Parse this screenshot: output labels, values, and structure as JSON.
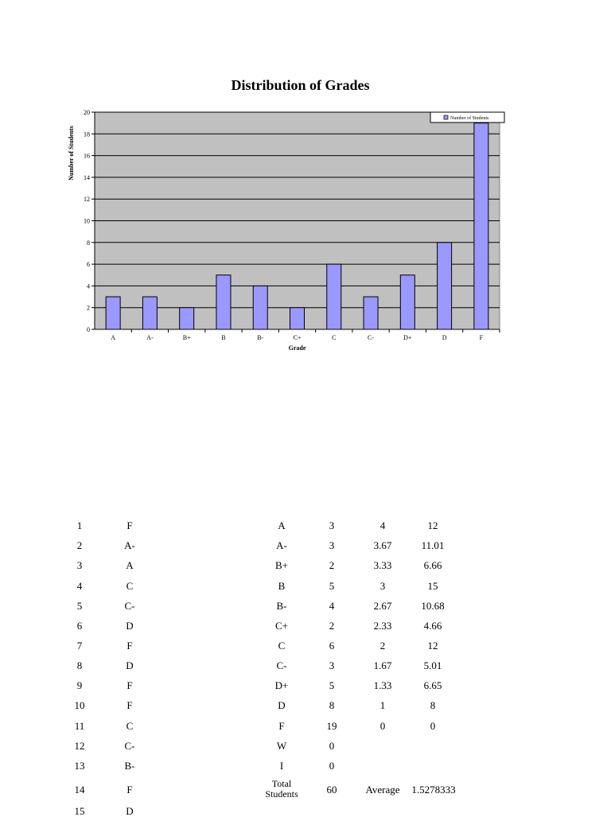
{
  "chart_data": {
    "type": "bar",
    "title": "Distribution of Grades",
    "xlabel": "Grade",
    "ylabel": "Number of Students",
    "categories": [
      "A",
      "A-",
      "B+",
      "B",
      "B-",
      "C+",
      "C",
      "C-",
      "D+",
      "D",
      "F"
    ],
    "series": [
      {
        "name": "Number of Students",
        "values": [
          3,
          3,
          2,
          5,
          4,
          2,
          6,
          3,
          5,
          8,
          19
        ]
      }
    ],
    "ylim": [
      0,
      20
    ],
    "yticks": [
      0,
      2,
      4,
      6,
      8,
      10,
      12,
      14,
      16,
      18,
      20
    ],
    "grid": true,
    "legend": "top-right",
    "bar_color": "#9999ff",
    "plot_background": "#c0c0c0"
  },
  "students": [
    {
      "num": "1",
      "grade": "F"
    },
    {
      "num": "2",
      "grade": "A-"
    },
    {
      "num": "3",
      "grade": "A"
    },
    {
      "num": "4",
      "grade": "C"
    },
    {
      "num": "5",
      "grade": "C-"
    },
    {
      "num": "6",
      "grade": "D"
    },
    {
      "num": "7",
      "grade": "F"
    },
    {
      "num": "8",
      "grade": "D"
    },
    {
      "num": "9",
      "grade": "F"
    },
    {
      "num": "10",
      "grade": "F"
    },
    {
      "num": "11",
      "grade": "C"
    },
    {
      "num": "12",
      "grade": "C-"
    },
    {
      "num": "13",
      "grade": "B-"
    },
    {
      "num": "14",
      "grade": "F"
    },
    {
      "num": "15",
      "grade": "D"
    }
  ],
  "summary": [
    {
      "grade": "A",
      "count": "3",
      "points": "4",
      "total": "12"
    },
    {
      "grade": "A-",
      "count": "3",
      "points": "3.67",
      "total": "11.01"
    },
    {
      "grade": "B+",
      "count": "2",
      "points": "3.33",
      "total": "6.66"
    },
    {
      "grade": "B",
      "count": "5",
      "points": "3",
      "total": "15"
    },
    {
      "grade": "B-",
      "count": "4",
      "points": "2.67",
      "total": "10.68"
    },
    {
      "grade": "C+",
      "count": "2",
      "points": "2.33",
      "total": "4.66"
    },
    {
      "grade": "C",
      "count": "6",
      "points": "2",
      "total": "12"
    },
    {
      "grade": "C-",
      "count": "3",
      "points": "1.67",
      "total": "5.01"
    },
    {
      "grade": "D+",
      "count": "5",
      "points": "1.33",
      "total": "6.65"
    },
    {
      "grade": "D",
      "count": "8",
      "points": "1",
      "total": "8"
    },
    {
      "grade": "F",
      "count": "19",
      "points": "0",
      "total": "0"
    },
    {
      "grade": "W",
      "count": "0",
      "points": "",
      "total": ""
    },
    {
      "grade": "I",
      "count": "0",
      "points": "",
      "total": ""
    }
  ],
  "totals": {
    "label": "Total Students",
    "count": "60",
    "average_label": "Average",
    "average_value": "1.5278333"
  }
}
